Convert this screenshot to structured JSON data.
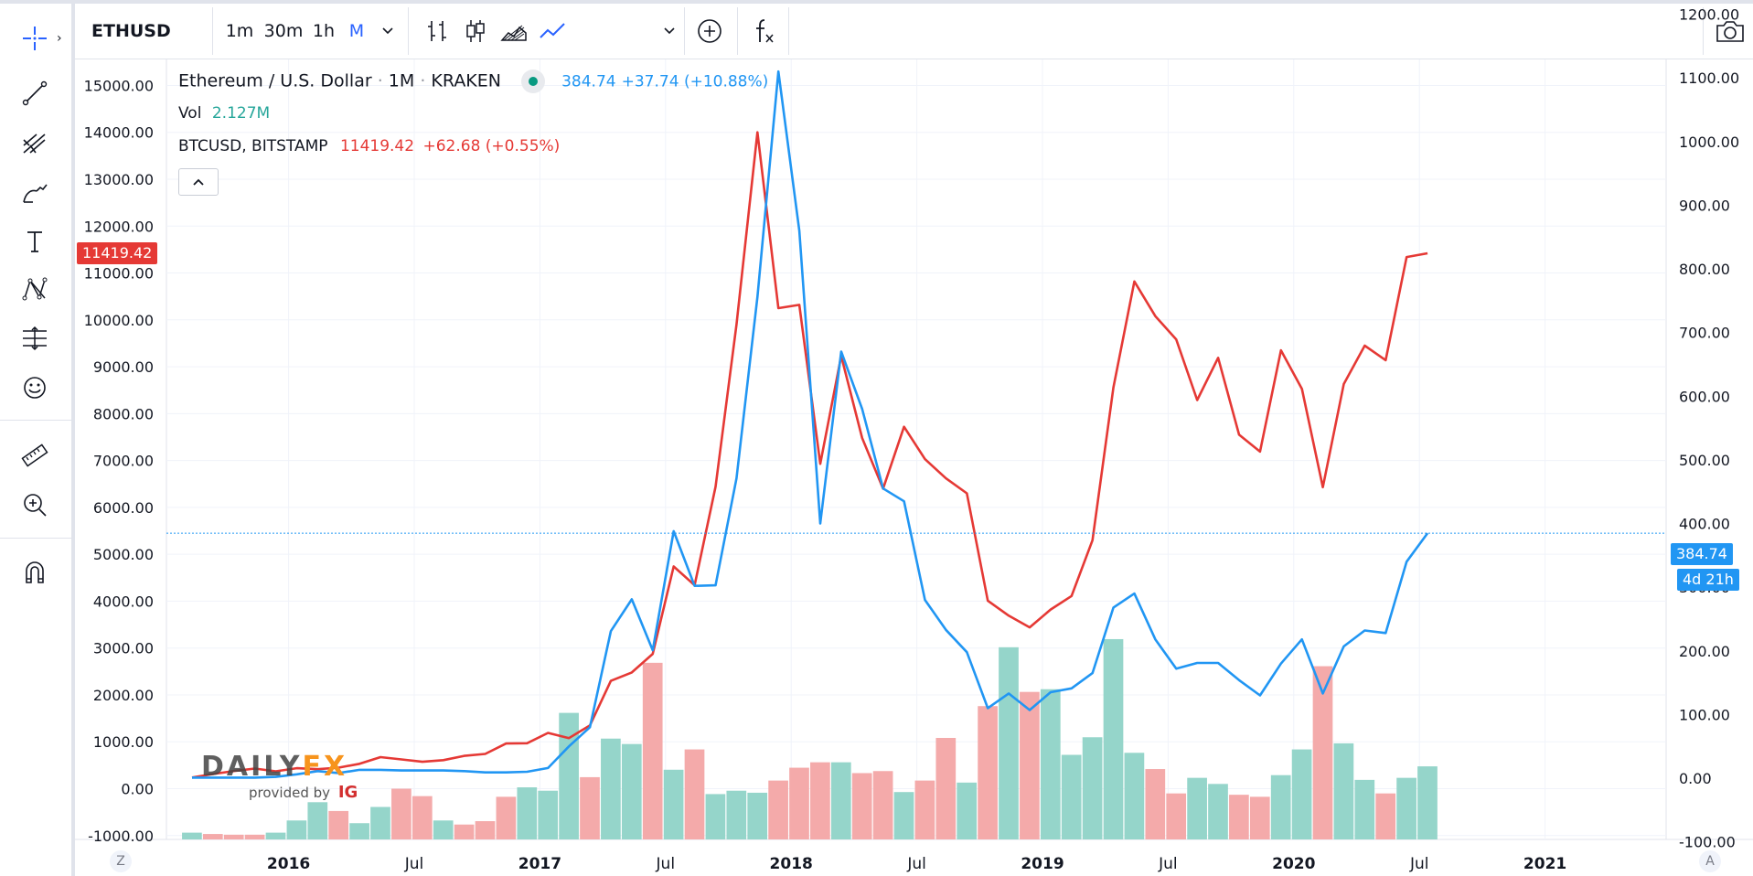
{
  "toolbar": {
    "symbol": "ETHUSD",
    "intervals": [
      "1m",
      "30m",
      "1h",
      "M"
    ],
    "active_interval": "M",
    "add_label": "+",
    "fx_label": "fx"
  },
  "legend": {
    "main_title": "Ethereum / U.S. Dollar",
    "main_interval": "1M",
    "main_exchange": "KRAKEN",
    "main_price": "384.74",
    "main_change": "+37.74 (+10.88%)",
    "vol_label": "Vol",
    "vol_value": "2.127M",
    "compare_symbol": "BTCUSD, BITSTAMP",
    "compare_price": "11419.42",
    "compare_change": "+62.68 (+0.55%)"
  },
  "badges": {
    "btc_price": "11419.42",
    "eth_price": "384.74",
    "countdown": "4d 21h"
  },
  "bottom": {
    "left_btn": "Z",
    "right_btn": "A"
  },
  "logo": {
    "brand": "DAILYFX",
    "provided_by": "provided by",
    "ig": "IG"
  },
  "colors": {
    "eth_line": "#2196f3",
    "btc_line": "#e53935",
    "vol_up": "#8fd3c7",
    "vol_down": "#f3a5a5",
    "accent": "#2962ff"
  },
  "chart_data": {
    "type": "line",
    "x": [
      "2015-09",
      "2015-10",
      "2015-11",
      "2015-12",
      "2016-01",
      "2016-02",
      "2016-03",
      "2016-04",
      "2016-05",
      "2016-06",
      "2016-07",
      "2016-08",
      "2016-09",
      "2016-10",
      "2016-11",
      "2016-12",
      "2017-01",
      "2017-02",
      "2017-03",
      "2017-04",
      "2017-05",
      "2017-06",
      "2017-07",
      "2017-08",
      "2017-09",
      "2017-10",
      "2017-11",
      "2017-12",
      "2018-01",
      "2018-02",
      "2018-03",
      "2018-04",
      "2018-05",
      "2018-06",
      "2018-07",
      "2018-08",
      "2018-09",
      "2018-10",
      "2018-11",
      "2018-12",
      "2019-01",
      "2019-02",
      "2019-03",
      "2019-04",
      "2019-05",
      "2019-06",
      "2019-07",
      "2019-08",
      "2019-09",
      "2019-10",
      "2019-11",
      "2019-12",
      "2020-01",
      "2020-02",
      "2020-03",
      "2020-04",
      "2020-05",
      "2020-06",
      "2020-07",
      "2020-08"
    ],
    "x_tick_labels": [
      "2016",
      "Jul",
      "2017",
      "Jul",
      "2018",
      "Jul",
      "2019",
      "Jul",
      "2020",
      "Jul",
      "2021"
    ],
    "left_axis": {
      "label": "",
      "ylim": [
        -1000,
        15000
      ],
      "ticks": [
        -1000,
        0,
        1000,
        2000,
        3000,
        4000,
        5000,
        6000,
        7000,
        8000,
        9000,
        10000,
        11000,
        12000,
        13000,
        14000,
        15000
      ]
    },
    "right_axis": {
      "label": "",
      "ylim": [
        -100,
        1200
      ],
      "ticks": [
        -100,
        0,
        100,
        200,
        300,
        400,
        500,
        600,
        700,
        800,
        900,
        1000,
        1100,
        1200
      ]
    },
    "series": [
      {
        "name": "Ethereum / U.S. Dollar",
        "axis": "right",
        "values": [
          0.9,
          0.9,
          0.9,
          0.9,
          2,
          6,
          11,
          8,
          13,
          13,
          12,
          12,
          12,
          11,
          9,
          9,
          10,
          16,
          50,
          80,
          231,
          281,
          201,
          388,
          302,
          303,
          471,
          756,
          1110,
          860,
          400,
          670,
          580,
          455,
          435,
          280,
          233,
          198,
          110,
          133,
          107,
          135,
          141,
          165,
          268,
          290,
          218,
          172,
          181,
          181,
          154,
          130,
          180,
          218,
          133,
          207,
          232,
          228,
          340,
          384.74
        ]
      },
      {
        "name": "BTCUSD, BITSTAMP",
        "axis": "left",
        "values": [
          237,
          313,
          377,
          430,
          370,
          437,
          416,
          448,
          531,
          673,
          624,
          574,
          609,
          700,
          742,
          964,
          970,
          1190,
          1079,
          1350,
          2300,
          2480,
          2875,
          4740,
          4340,
          6440,
          9900,
          14000,
          10250,
          10320,
          6930,
          9230,
          7480,
          6400,
          7720,
          7030,
          6620,
          6300,
          4010,
          3690,
          3440,
          3820,
          4110,
          5300,
          8560,
          10820,
          10080,
          9580,
          8290,
          9190,
          7550,
          7190,
          9350,
          8530,
          6430,
          8630,
          9450,
          9140,
          11340,
          11419.42
        ]
      },
      {
        "name": "Vol",
        "axis": "volume",
        "values": [
          0.1,
          0.08,
          0.07,
          0.07,
          0.1,
          0.28,
          0.55,
          0.42,
          0.24,
          0.48,
          0.75,
          0.64,
          0.28,
          0.22,
          0.27,
          0.63,
          0.77,
          0.72,
          1.87,
          0.92,
          1.49,
          1.41,
          2.61,
          1.03,
          1.33,
          0.67,
          0.72,
          0.69,
          0.87,
          1.06,
          1.14,
          1.14,
          0.98,
          1.01,
          0.7,
          0.87,
          1.5,
          0.84,
          1.97,
          2.84,
          2.18,
          2.22,
          1.25,
          1.51,
          2.96,
          1.28,
          1.04,
          0.68,
          0.91,
          0.82,
          0.66,
          0.63,
          0.95,
          1.33,
          2.56,
          1.42,
          0.88,
          0.68,
          0.91,
          1.08
        ],
        "up": [
          true,
          false,
          false,
          false,
          true,
          true,
          true,
          false,
          true,
          true,
          false,
          false,
          true,
          false,
          false,
          false,
          true,
          true,
          true,
          false,
          true,
          true,
          false,
          true,
          false,
          true,
          true,
          true,
          false,
          false,
          false,
          true,
          false,
          false,
          true,
          false,
          false,
          true,
          false,
          true,
          false,
          true,
          true,
          true,
          true,
          true,
          false,
          false,
          true,
          true,
          false,
          false,
          true,
          true,
          false,
          true,
          true,
          false,
          true,
          true
        ],
        "last_value": "2.127M"
      }
    ],
    "grid": true,
    "legend_position": "top-left"
  }
}
